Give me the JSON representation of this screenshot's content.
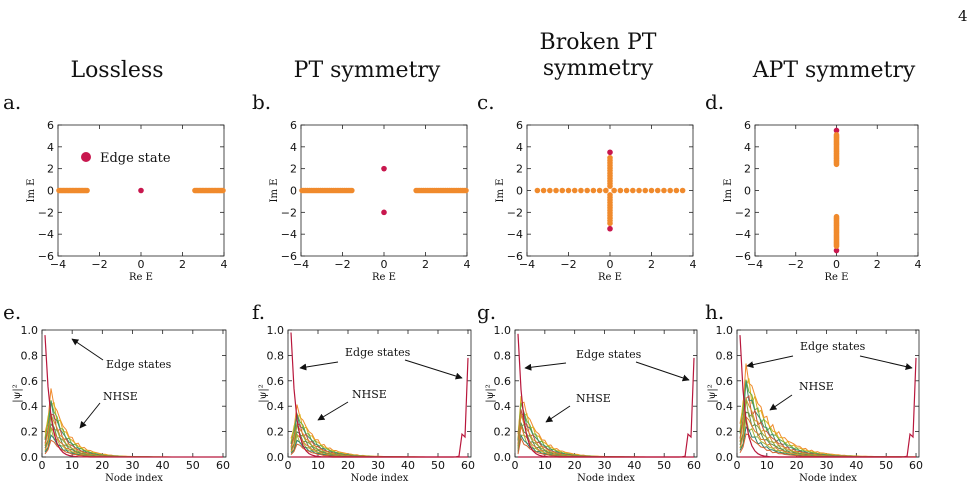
{
  "page_number": "4",
  "columns": [
    {
      "title": "Lossless"
    },
    {
      "title": "PT symmetry"
    },
    {
      "title": "Broken PT symmetry"
    },
    {
      "title": "APT symmetry"
    }
  ],
  "panel_labels": [
    "a.",
    "b.",
    "c.",
    "d.",
    "e.",
    "f.",
    "g.",
    "h."
  ],
  "colors": {
    "bulk": "#f08a2c",
    "edge": "#c8174e",
    "edge_line": "#b8173c"
  },
  "chart_data": [
    {
      "id": "a",
      "type": "scatter",
      "xlabel": "Re E",
      "ylabel": "Im E",
      "xlim": [
        -4,
        4
      ],
      "ylim": [
        -6,
        6
      ],
      "xticks": [
        -4,
        -2,
        0,
        2,
        4
      ],
      "yticks": [
        -6,
        -4,
        -2,
        0,
        2,
        4,
        6
      ],
      "legend": {
        "label": "Edge state",
        "placement": "top-left"
      },
      "series": [
        {
          "name": "Edge state",
          "role": "edge",
          "points": [
            [
              0,
              0
            ]
          ]
        },
        {
          "role": "bulk",
          "segments": [
            {
              "axis": "x",
              "from": -3.95,
              "to": -2.6,
              "at": 0,
              "n": 20
            },
            {
              "axis": "x",
              "from": 2.6,
              "to": 3.95,
              "at": 0,
              "n": 20
            }
          ]
        }
      ]
    },
    {
      "id": "b",
      "type": "scatter",
      "xlabel": "Re E",
      "ylabel": "Im E",
      "xlim": [
        -4,
        4
      ],
      "ylim": [
        -6,
        6
      ],
      "xticks": [
        -4,
        -2,
        0,
        2,
        4
      ],
      "yticks": [
        -6,
        -4,
        -2,
        0,
        2,
        4,
        6
      ],
      "series": [
        {
          "role": "edge",
          "points": [
            [
              0,
              2
            ],
            [
              0,
              -2
            ]
          ]
        },
        {
          "role": "bulk",
          "segments": [
            {
              "axis": "x",
              "from": -3.95,
              "to": -1.55,
              "at": 0,
              "n": 28
            },
            {
              "axis": "x",
              "from": 1.55,
              "to": 3.95,
              "at": 0,
              "n": 28
            }
          ]
        }
      ]
    },
    {
      "id": "c",
      "type": "scatter",
      "xlabel": "Re E",
      "ylabel": "Im E",
      "xlim": [
        -4,
        4
      ],
      "ylim": [
        -6,
        6
      ],
      "xticks": [
        -4,
        -2,
        0,
        2,
        4
      ],
      "yticks": [
        -6,
        -4,
        -2,
        0,
        2,
        4,
        6
      ],
      "series": [
        {
          "role": "edge",
          "points": [
            [
              0,
              3.5
            ],
            [
              0,
              -3.5
            ]
          ]
        },
        {
          "role": "bulk",
          "points": [
            [
              -3.5,
              0
            ],
            [
              -3.2,
              0
            ],
            [
              -2.9,
              0
            ],
            [
              -2.6,
              0
            ],
            [
              -2.3,
              0
            ],
            [
              -2.0,
              0
            ],
            [
              -1.7,
              0
            ],
            [
              -1.4,
              0
            ],
            [
              -1.1,
              0
            ],
            [
              -0.8,
              0
            ],
            [
              -0.5,
              0
            ],
            [
              -0.2,
              0
            ],
            [
              0.2,
              0
            ],
            [
              0.5,
              0
            ],
            [
              0.8,
              0
            ],
            [
              1.1,
              0
            ],
            [
              1.4,
              0
            ],
            [
              1.7,
              0
            ],
            [
              2.0,
              0
            ],
            [
              2.3,
              0
            ],
            [
              2.6,
              0
            ],
            [
              2.9,
              0
            ],
            [
              3.2,
              0
            ],
            [
              3.5,
              0
            ]
          ]
        },
        {
          "role": "bulk",
          "segments": [
            {
              "axis": "y",
              "from": 0.4,
              "to": 3.0,
              "at": 0,
              "n": 12
            },
            {
              "axis": "y",
              "from": -3.0,
              "to": -0.4,
              "at": 0,
              "n": 12
            }
          ]
        }
      ]
    },
    {
      "id": "d",
      "type": "scatter",
      "xlabel": "Re E",
      "ylabel": "Im E",
      "xlim": [
        -4,
        4
      ],
      "ylim": [
        -6,
        6
      ],
      "xticks": [
        -4,
        -2,
        0,
        2,
        4
      ],
      "yticks": [
        -6,
        -4,
        -2,
        0,
        2,
        4,
        6
      ],
      "series": [
        {
          "role": "edge",
          "points": [
            [
              0,
              5.5
            ],
            [
              0,
              -5.5
            ]
          ]
        },
        {
          "role": "bulk",
          "segments": [
            {
              "axis": "y",
              "from": 2.4,
              "to": 5.1,
              "at": 0,
              "n": 22
            },
            {
              "axis": "y",
              "from": -5.1,
              "to": -2.4,
              "at": 0,
              "n": 22
            }
          ]
        }
      ]
    },
    {
      "id": "e",
      "type": "line",
      "xlabel": "Node index",
      "ylabel": "|ψ|²",
      "xlim": [
        0,
        61
      ],
      "ylim": [
        0,
        1
      ],
      "xticks": [
        0,
        10,
        20,
        30,
        40,
        50,
        60
      ],
      "yticks": [
        0.0,
        0.2,
        0.4,
        0.6,
        0.8,
        1.0
      ],
      "edge_profile": {
        "peak": 0.96,
        "decay": 0.55,
        "right_peak": 0
      },
      "bulk_profile": {
        "amp": 0.55,
        "decay": 0.18,
        "peak_node": 3
      },
      "annotations": [
        {
          "text": "Edge states"
        },
        {
          "text": "NHSE"
        }
      ]
    },
    {
      "id": "f",
      "type": "line",
      "xlabel": "Node index",
      "ylabel": "|ψ|²",
      "xlim": [
        0,
        61
      ],
      "ylim": [
        0,
        1
      ],
      "xticks": [
        0,
        10,
        20,
        30,
        40,
        50,
        60
      ],
      "yticks": [
        0.0,
        0.2,
        0.4,
        0.6,
        0.8,
        1.0
      ],
      "edge_profile": {
        "peak": 0.98,
        "decay": 0.6,
        "right_peak": 0.78
      },
      "bulk_profile": {
        "amp": 0.42,
        "decay": 0.16,
        "peak_node": 3
      },
      "annotations": [
        {
          "text": "Edge states"
        },
        {
          "text": "NHSE"
        }
      ]
    },
    {
      "id": "g",
      "type": "line",
      "xlabel": "Node index",
      "ylabel": "|ψ|²",
      "xlim": [
        0,
        61
      ],
      "ylim": [
        0,
        1
      ],
      "xticks": [
        0,
        10,
        20,
        30,
        40,
        50,
        60
      ],
      "yticks": [
        0.0,
        0.2,
        0.4,
        0.6,
        0.8,
        1.0
      ],
      "edge_profile": {
        "peak": 0.97,
        "decay": 0.6,
        "right_peak": 0.78
      },
      "bulk_profile": {
        "amp": 0.52,
        "decay": 0.17,
        "peak_node": 2
      },
      "annotations": [
        {
          "text": "Edge states"
        },
        {
          "text": "NHSE"
        }
      ]
    },
    {
      "id": "h",
      "type": "line",
      "xlabel": "Node index",
      "ylabel": "|ψ|²",
      "xlim": [
        0,
        61
      ],
      "ylim": [
        0,
        1
      ],
      "xticks": [
        0,
        10,
        20,
        30,
        40,
        50,
        60
      ],
      "yticks": [
        0.0,
        0.2,
        0.4,
        0.6,
        0.8,
        1.0
      ],
      "edge_profile": {
        "peak": 0.96,
        "decay": 0.6,
        "right_peak": 0.78
      },
      "bulk_profile": {
        "amp": 0.75,
        "decay": 0.12,
        "peak_node": 3
      },
      "annotations": [
        {
          "text": "Edge states"
        },
        {
          "text": "NHSE"
        }
      ]
    }
  ]
}
